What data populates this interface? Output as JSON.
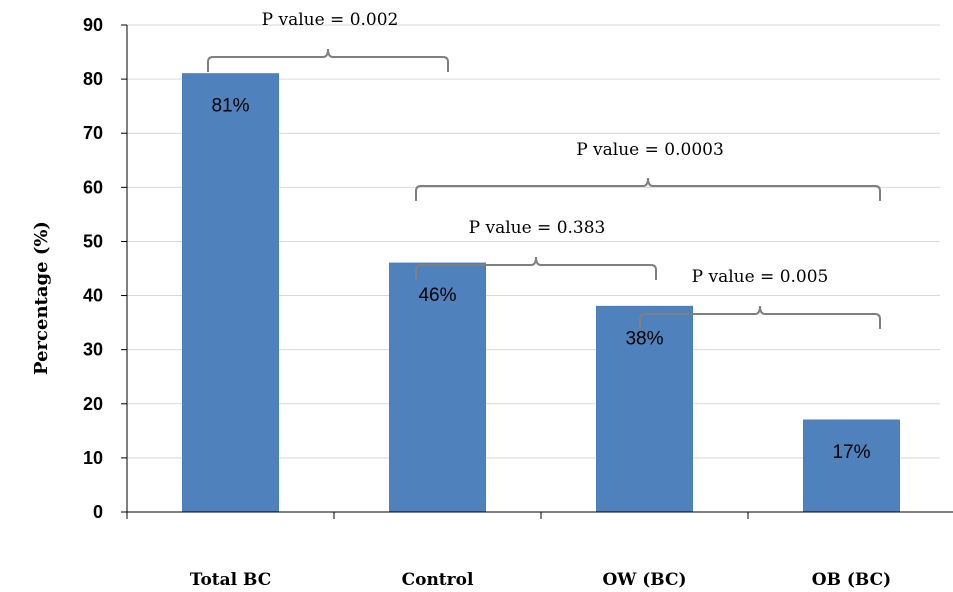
{
  "chart_data": {
    "type": "bar",
    "categories": [
      "Total BC",
      "Control",
      "OW (BC)",
      "OB (BC)"
    ],
    "values": [
      81,
      46,
      38,
      17
    ],
    "data_labels": [
      "81%",
      "46%",
      "38%",
      "17%"
    ],
    "title": "",
    "xlabel": "",
    "ylabel": "Percentage  (%)",
    "ylim": [
      0,
      90
    ],
    "yticks": [
      0,
      10,
      20,
      30,
      40,
      50,
      60,
      70,
      80,
      90
    ],
    "grid": true,
    "bar_color": "#4f81bd",
    "annotations": [
      {
        "text": "P value = 0.002",
        "from": "Total BC",
        "to": "Control"
      },
      {
        "text": "P value = 0.0003",
        "from": "Control",
        "to": "OB (BC)"
      },
      {
        "text": "P value = 0.383",
        "from": "Control",
        "to": "OW (BC)"
      },
      {
        "text": "P value = 0.005",
        "from": "OW (BC)",
        "to": "OB (BC)"
      }
    ]
  }
}
